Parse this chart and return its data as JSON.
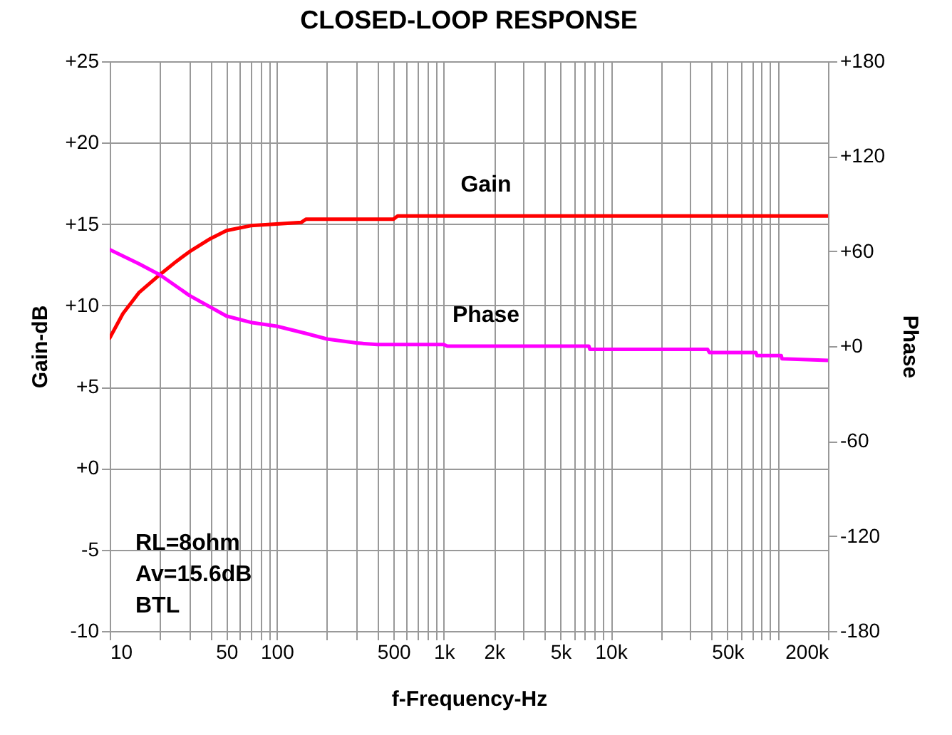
{
  "chart_data": {
    "type": "line",
    "title": "CLOSED-LOOP RESPONSE",
    "xlabel": "f-Frequency-Hz",
    "ylabel": "Gain-dB",
    "y2label": "Phase",
    "log": "x",
    "grid": true,
    "line_style": "solid",
    "xlim": [
      10,
      200000
    ],
    "xticks": [
      10,
      {
        "value": 20,
        "label": null
      },
      {
        "value": 30,
        "label": null
      },
      {
        "value": 40,
        "label": null
      },
      50,
      {
        "value": 60,
        "label": null
      },
      {
        "value": 70,
        "label": null
      },
      {
        "value": 80,
        "label": null
      },
      {
        "value": 90,
        "label": null
      },
      100,
      {
        "value": 200,
        "label": null
      },
      {
        "value": 300,
        "label": null
      },
      {
        "value": 400,
        "label": null
      },
      500,
      {
        "value": 600,
        "label": null
      },
      {
        "value": 700,
        "label": null
      },
      {
        "value": 800,
        "label": null
      },
      {
        "value": 900,
        "label": null
      },
      {
        "value": 1000,
        "label": "1k"
      },
      {
        "value": 2000,
        "label": "2k"
      },
      {
        "value": 3000,
        "label": null
      },
      {
        "value": 4000,
        "label": null
      },
      {
        "value": 5000,
        "label": "5k"
      },
      {
        "value": 6000,
        "label": null
      },
      {
        "value": 7000,
        "label": null
      },
      {
        "value": 8000,
        "label": null
      },
      {
        "value": 9000,
        "label": null
      },
      {
        "value": 10000,
        "label": "10k"
      },
      {
        "value": 20000,
        "label": null
      },
      {
        "value": 30000,
        "label": null
      },
      {
        "value": 40000,
        "label": null
      },
      {
        "value": 50000,
        "label": "50k"
      },
      {
        "value": 60000,
        "label": null
      },
      {
        "value": 70000,
        "label": null
      },
      {
        "value": 80000,
        "label": null
      },
      {
        "value": 90000,
        "label": null
      },
      {
        "value": 100000,
        "label": null
      },
      {
        "value": 200000,
        "label": "200k"
      }
    ],
    "ylim": [
      -10,
      25
    ],
    "yticks": [
      {
        "value": -10,
        "label": "-10"
      },
      {
        "value": -5,
        "label": "-5"
      },
      {
        "value": 0,
        "label": "+0"
      },
      {
        "value": 5,
        "label": "+5"
      },
      {
        "value": 10,
        "label": "+10"
      },
      {
        "value": 15,
        "label": "+15"
      },
      {
        "value": 20,
        "label": "+20"
      },
      {
        "value": 25,
        "label": "+25"
      }
    ],
    "y2lim": [
      -180,
      180
    ],
    "y2ticks": [
      {
        "value": -180,
        "label": "-180"
      },
      {
        "value": -120,
        "label": "-120"
      },
      {
        "value": -60,
        "label": "-60"
      },
      {
        "value": 0,
        "label": "+0"
      },
      {
        "value": 60,
        "label": "+60"
      },
      {
        "value": 120,
        "label": "+120"
      },
      {
        "value": 180,
        "label": "+180"
      }
    ],
    "series": [
      {
        "name": "Gain",
        "color": "#ff0000",
        "x": [
          10,
          12,
          15,
          20,
          25,
          30,
          40,
          50,
          70,
          100,
          140,
          150,
          500,
          530,
          200000
        ],
        "values": [
          8.0,
          9.5,
          10.8,
          11.9,
          12.7,
          13.3,
          14.1,
          14.6,
          14.9,
          15.0,
          15.1,
          15.3,
          15.3,
          15.5,
          15.5
        ]
      },
      {
        "name": "Phase",
        "color": "#ff00ff",
        "axis": "y2",
        "x": [
          10,
          15,
          20,
          30,
          50,
          70,
          100,
          150,
          200,
          300,
          400,
          1000,
          1050,
          7400,
          7500,
          38000,
          39000,
          74000,
          75000,
          105000,
          106000,
          200000
        ],
        "values": [
          61,
          52,
          45,
          32,
          19,
          15,
          12.6,
          8,
          4.5,
          2,
          1,
          1,
          0,
          0,
          -2,
          -2,
          -4,
          -4,
          -6,
          -6,
          -8,
          -9
        ]
      }
    ],
    "annotations": [
      "RL=8ohm",
      "Av=15.6dB",
      "BTL"
    ]
  }
}
